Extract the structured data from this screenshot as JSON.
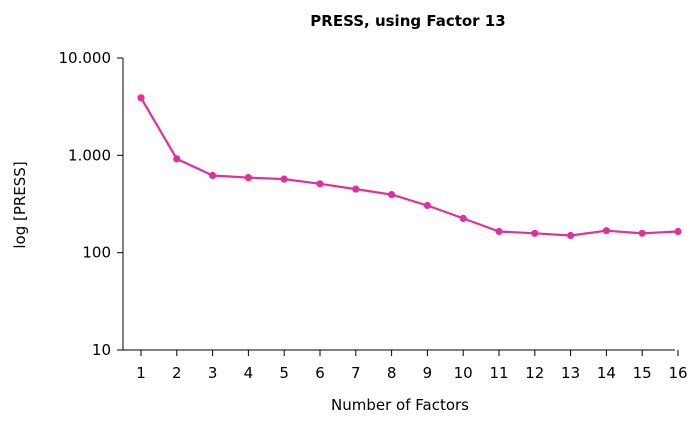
{
  "chart_data": {
    "type": "line",
    "title": "PRESS, using Factor 13",
    "xlabel": "Number of Factors",
    "ylabel": "log [PRESS]",
    "yscale": "log",
    "ylim": [
      10,
      10000
    ],
    "xlim": [
      1,
      16
    ],
    "grid": false,
    "legend": "none",
    "x": [
      1,
      2,
      3,
      4,
      5,
      6,
      7,
      8,
      9,
      10,
      11,
      12,
      13,
      14,
      15,
      16
    ],
    "x_tick_labels": [
      "1",
      "2",
      "3",
      "4",
      "5",
      "6",
      "7",
      "8",
      "9",
      "10",
      "11",
      "12",
      "13",
      "14",
      "15",
      "16"
    ],
    "y_ticks": [
      10,
      100,
      1000,
      10000
    ],
    "y_tick_labels": [
      "10",
      "100",
      "1.000",
      "10.000"
    ],
    "series": [
      {
        "color": "#e0309a",
        "values": [
          3900,
          920,
          620,
          590,
          570,
          510,
          450,
          395,
          305,
          225,
          165,
          158,
          150,
          168,
          158,
          165
        ]
      }
    ]
  }
}
